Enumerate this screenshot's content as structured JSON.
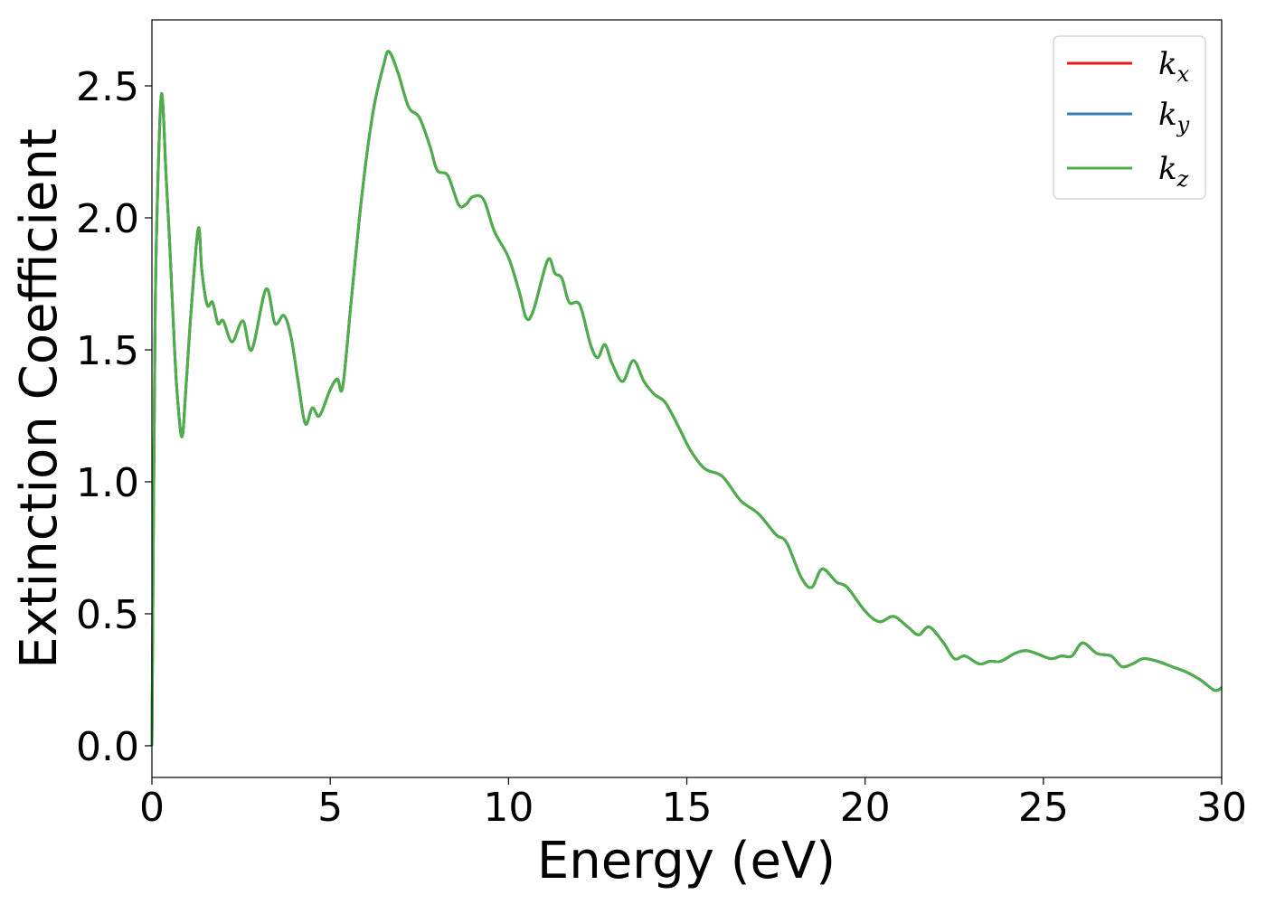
{
  "chart_data": {
    "type": "line",
    "xlabel": "Energy (eV)",
    "ylabel": "Extinction Coefficient",
    "xlim": [
      0,
      30
    ],
    "ylim": [
      -0.12,
      2.75
    ],
    "xticks": [
      0,
      5,
      10,
      15,
      20,
      25,
      30
    ],
    "xtick_labels": [
      "0",
      "5",
      "10",
      "15",
      "20",
      "25",
      "30"
    ],
    "yticks": [
      0.0,
      0.5,
      1.0,
      1.5,
      2.0,
      2.5
    ],
    "ytick_labels": [
      "0.0",
      "0.5",
      "1.0",
      "1.5",
      "2.0",
      "2.5"
    ],
    "grid": false,
    "legend_position": "top-right",
    "series": [
      {
        "name": "k",
        "subscript": "x",
        "color": "#e41a1c"
      },
      {
        "name": "k",
        "subscript": "y",
        "color": "#377eb8"
      },
      {
        "name": "k",
        "subscript": "z",
        "color": "#4daf4a"
      }
    ],
    "x": [
      0.0,
      0.08,
      0.15,
      0.27,
      0.4,
      0.5,
      0.6,
      0.7,
      0.84,
      0.95,
      1.1,
      1.3,
      1.4,
      1.55,
      1.7,
      1.85,
      2.0,
      2.25,
      2.55,
      2.8,
      3.2,
      3.45,
      3.7,
      3.9,
      4.1,
      4.3,
      4.5,
      4.7,
      5.0,
      5.2,
      5.35,
      5.6,
      5.9,
      6.2,
      6.5,
      6.65,
      6.9,
      7.2,
      7.5,
      7.8,
      8.0,
      8.3,
      8.6,
      8.8,
      9.0,
      9.3,
      9.6,
      10.0,
      10.3,
      10.5,
      10.7,
      11.1,
      11.3,
      11.5,
      11.7,
      12.0,
      12.3,
      12.5,
      12.7,
      12.9,
      13.2,
      13.5,
      13.8,
      14.1,
      14.4,
      14.8,
      15.1,
      15.5,
      16.0,
      16.5,
      17.0,
      17.5,
      17.8,
      18.2,
      18.5,
      18.8,
      19.2,
      19.5,
      20.0,
      20.4,
      20.8,
      21.2,
      21.5,
      21.8,
      22.2,
      22.5,
      22.8,
      23.2,
      23.5,
      23.8,
      24.2,
      24.5,
      24.8,
      25.2,
      25.5,
      25.8,
      26.1,
      26.5,
      26.9,
      27.2,
      27.5,
      27.8,
      28.2,
      28.6,
      29.0,
      29.4,
      29.8,
      30.0
    ],
    "y": [
      0.0,
      1.5,
      2.05,
      2.47,
      2.15,
      1.9,
      1.6,
      1.35,
      1.17,
      1.35,
      1.65,
      1.96,
      1.8,
      1.67,
      1.68,
      1.6,
      1.61,
      1.53,
      1.61,
      1.5,
      1.73,
      1.6,
      1.63,
      1.55,
      1.38,
      1.22,
      1.28,
      1.25,
      1.35,
      1.39,
      1.36,
      1.7,
      2.1,
      2.4,
      2.58,
      2.63,
      2.55,
      2.42,
      2.38,
      2.27,
      2.18,
      2.16,
      2.05,
      2.05,
      2.08,
      2.07,
      1.95,
      1.85,
      1.72,
      1.62,
      1.65,
      1.84,
      1.79,
      1.77,
      1.68,
      1.67,
      1.52,
      1.47,
      1.52,
      1.45,
      1.38,
      1.46,
      1.38,
      1.33,
      1.3,
      1.2,
      1.12,
      1.05,
      1.02,
      0.93,
      0.88,
      0.8,
      0.77,
      0.64,
      0.6,
      0.67,
      0.62,
      0.6,
      0.51,
      0.47,
      0.49,
      0.45,
      0.42,
      0.45,
      0.39,
      0.33,
      0.34,
      0.31,
      0.32,
      0.32,
      0.35,
      0.36,
      0.35,
      0.33,
      0.34,
      0.34,
      0.39,
      0.35,
      0.34,
      0.3,
      0.31,
      0.33,
      0.32,
      0.3,
      0.28,
      0.25,
      0.21,
      0.22
    ]
  }
}
